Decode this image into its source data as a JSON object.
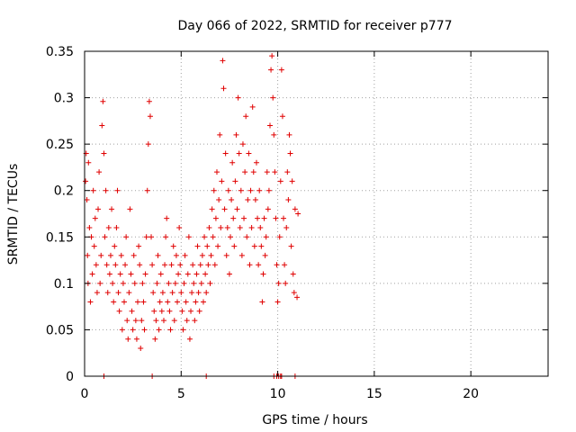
{
  "colors": {
    "series": "#e00000",
    "grid": "#a0a0a0",
    "axis": "#000000"
  },
  "chart_data": {
    "type": "scatter",
    "title": "Day 066 of 2022, SRMTID for receiver p777",
    "xlabel": "GPS time / hours",
    "ylabel": "SRMTID / TECUs",
    "xlim": [
      0,
      24
    ],
    "ylim": [
      0,
      0.35
    ],
    "grid": true,
    "marker": "plus",
    "xticks": [
      0,
      5,
      10,
      15,
      20
    ],
    "yticks": [
      0,
      0.05,
      0.1,
      0.15,
      0.2,
      0.25,
      0.3,
      0.35
    ],
    "xtick_labels": [
      "0",
      "5",
      "10",
      "15",
      "20"
    ],
    "ytick_labels": [
      "0",
      "0.05",
      "0.1",
      "0.15",
      "0.2",
      "0.25",
      "0.3",
      "0.35"
    ],
    "series": [
      {
        "name": "SRMTID",
        "points": [
          [
            0.05,
            0.21
          ],
          [
            0.08,
            0.24
          ],
          [
            0.12,
            0.19
          ],
          [
            0.15,
            0.13
          ],
          [
            0.18,
            0.1
          ],
          [
            0.2,
            0.23
          ],
          [
            0.25,
            0.16
          ],
          [
            0.3,
            0.08
          ],
          [
            0.35,
            0.15
          ],
          [
            0.4,
            0.11
          ],
          [
            0.45,
            0.2
          ],
          [
            0.5,
            0.14
          ],
          [
            0.55,
            0.17
          ],
          [
            0.6,
            0.12
          ],
          [
            0.65,
            0.09
          ],
          [
            0.7,
            0.18
          ],
          [
            0.75,
            0.22
          ],
          [
            0.8,
            0.1
          ],
          [
            0.85,
            0.13
          ],
          [
            0.9,
            0.27
          ],
          [
            0.95,
            0.296
          ],
          [
            1.0,
            0.24
          ],
          [
            1.05,
            0.15
          ],
          [
            1.1,
            0.2
          ],
          [
            1.15,
            0.12
          ],
          [
            1.2,
            0.09
          ],
          [
            1.25,
            0.16
          ],
          [
            1.3,
            0.11
          ],
          [
            1.35,
            0.13
          ],
          [
            1.4,
            0.18
          ],
          [
            1.45,
            0.1
          ],
          [
            1.5,
            0.08
          ],
          [
            1.55,
            0.14
          ],
          [
            1.6,
            0.12
          ],
          [
            1.65,
            0.16
          ],
          [
            1.7,
            0.2
          ],
          [
            1.75,
            0.09
          ],
          [
            1.8,
            0.07
          ],
          [
            1.85,
            0.11
          ],
          [
            1.9,
            0.13
          ],
          [
            1.95,
            0.05
          ],
          [
            2.0,
            0.1
          ],
          [
            2.05,
            0.08
          ],
          [
            2.1,
            0.12
          ],
          [
            2.15,
            0.15
          ],
          [
            2.2,
            0.06
          ],
          [
            2.25,
            0.04
          ],
          [
            2.3,
            0.09
          ],
          [
            2.35,
            0.18
          ],
          [
            2.4,
            0.11
          ],
          [
            2.45,
            0.07
          ],
          [
            2.5,
            0.05
          ],
          [
            2.55,
            0.13
          ],
          [
            2.6,
            0.1
          ],
          [
            2.65,
            0.06
          ],
          [
            2.7,
            0.04
          ],
          [
            2.75,
            0.08
          ],
          [
            2.8,
            0.14
          ],
          [
            2.85,
            0.12
          ],
          [
            2.9,
            0.03
          ],
          [
            2.95,
            0.06
          ],
          [
            3.0,
            0.1
          ],
          [
            3.05,
            0.08
          ],
          [
            3.1,
            0.05
          ],
          [
            3.15,
            0.11
          ],
          [
            3.2,
            0.15
          ],
          [
            3.25,
            0.2
          ],
          [
            3.3,
            0.25
          ],
          [
            3.35,
            0.296
          ],
          [
            3.4,
            0.28
          ],
          [
            3.45,
            0.15
          ],
          [
            3.5,
            0.12
          ],
          [
            3.55,
            0.09
          ],
          [
            3.6,
            0.07
          ],
          [
            3.65,
            0.04
          ],
          [
            3.7,
            0.06
          ],
          [
            3.75,
            0.1
          ],
          [
            3.8,
            0.13
          ],
          [
            3.85,
            0.05
          ],
          [
            3.9,
            0.08
          ],
          [
            3.95,
            0.11
          ],
          [
            4.0,
            0.07
          ],
          [
            4.05,
            0.09
          ],
          [
            4.1,
            0.06
          ],
          [
            4.15,
            0.12
          ],
          [
            4.2,
            0.15
          ],
          [
            4.25,
            0.17
          ],
          [
            4.3,
            0.08
          ],
          [
            4.35,
            0.1
          ],
          [
            4.4,
            0.07
          ],
          [
            4.45,
            0.05
          ],
          [
            4.5,
            0.12
          ],
          [
            4.55,
            0.09
          ],
          [
            4.6,
            0.14
          ],
          [
            4.65,
            0.06
          ],
          [
            4.7,
            0.1
          ],
          [
            4.75,
            0.13
          ],
          [
            4.8,
            0.08
          ],
          [
            4.85,
            0.11
          ],
          [
            4.9,
            0.16
          ],
          [
            4.95,
            0.12
          ],
          [
            5.0,
            0.09
          ],
          [
            5.05,
            0.07
          ],
          [
            5.1,
            0.05
          ],
          [
            5.15,
            0.1
          ],
          [
            5.2,
            0.13
          ],
          [
            5.25,
            0.08
          ],
          [
            5.3,
            0.06
          ],
          [
            5.35,
            0.11
          ],
          [
            5.4,
            0.15
          ],
          [
            5.45,
            0.04
          ],
          [
            5.5,
            0.07
          ],
          [
            5.55,
            0.09
          ],
          [
            5.6,
            0.12
          ],
          [
            5.65,
            0.1
          ],
          [
            5.7,
            0.06
          ],
          [
            5.75,
            0.08
          ],
          [
            5.8,
            0.11
          ],
          [
            5.85,
            0.14
          ],
          [
            5.9,
            0.09
          ],
          [
            5.95,
            0.07
          ],
          [
            6.0,
            0.12
          ],
          [
            6.05,
            0.1
          ],
          [
            6.1,
            0.13
          ],
          [
            6.15,
            0.08
          ],
          [
            6.2,
            0.15
          ],
          [
            6.25,
            0.11
          ],
          [
            6.3,
            0.09
          ],
          [
            6.35,
            0.14
          ],
          [
            6.4,
            0.12
          ],
          [
            6.45,
            0.16
          ],
          [
            6.5,
            0.1
          ],
          [
            6.55,
            0.13
          ],
          [
            6.6,
            0.18
          ],
          [
            6.65,
            0.15
          ],
          [
            6.7,
            0.2
          ],
          [
            6.75,
            0.12
          ],
          [
            6.8,
            0.17
          ],
          [
            6.85,
            0.22
          ],
          [
            6.9,
            0.14
          ],
          [
            6.95,
            0.19
          ],
          [
            7.0,
            0.26
          ],
          [
            7.05,
            0.16
          ],
          [
            7.1,
            0.21
          ],
          [
            7.15,
            0.34
          ],
          [
            7.2,
            0.31
          ],
          [
            7.25,
            0.18
          ],
          [
            7.3,
            0.24
          ],
          [
            7.35,
            0.13
          ],
          [
            7.4,
            0.16
          ],
          [
            7.45,
            0.2
          ],
          [
            7.5,
            0.11
          ],
          [
            7.55,
            0.15
          ],
          [
            7.6,
            0.19
          ],
          [
            7.65,
            0.23
          ],
          [
            7.7,
            0.17
          ],
          [
            7.75,
            0.14
          ],
          [
            7.8,
            0.21
          ],
          [
            7.85,
            0.26
          ],
          [
            7.9,
            0.18
          ],
          [
            7.95,
            0.3
          ],
          [
            8.0,
            0.24
          ],
          [
            8.05,
            0.16
          ],
          [
            8.1,
            0.2
          ],
          [
            8.15,
            0.13
          ],
          [
            8.2,
            0.25
          ],
          [
            8.25,
            0.17
          ],
          [
            8.3,
            0.22
          ],
          [
            8.35,
            0.28
          ],
          [
            8.4,
            0.15
          ],
          [
            8.45,
            0.19
          ],
          [
            8.5,
            0.24
          ],
          [
            8.55,
            0.12
          ],
          [
            8.6,
            0.2
          ],
          [
            8.65,
            0.16
          ],
          [
            8.7,
            0.29
          ],
          [
            8.75,
            0.22
          ],
          [
            8.8,
            0.14
          ],
          [
            8.85,
            0.19
          ],
          [
            8.9,
            0.23
          ],
          [
            8.95,
            0.17
          ],
          [
            9.0,
            0.12
          ],
          [
            9.05,
            0.2
          ],
          [
            9.1,
            0.16
          ],
          [
            9.15,
            0.14
          ],
          [
            9.2,
            0.08
          ],
          [
            9.25,
            0.11
          ],
          [
            9.3,
            0.17
          ],
          [
            9.35,
            0.13
          ],
          [
            9.4,
            0.15
          ],
          [
            9.45,
            0.22
          ],
          [
            9.5,
            0.18
          ],
          [
            9.55,
            0.2
          ],
          [
            9.6,
            0.27
          ],
          [
            9.65,
            0.33
          ],
          [
            9.7,
            0.345
          ],
          [
            9.75,
            0.3
          ],
          [
            9.8,
            0.26
          ],
          [
            9.85,
            0.22
          ],
          [
            9.9,
            0.17
          ],
          [
            9.95,
            0.12
          ],
          [
            10.0,
            0.08
          ],
          [
            10.05,
            0.1
          ],
          [
            10.1,
            0.15
          ],
          [
            10.15,
            0.21
          ],
          [
            10.2,
            0.33
          ],
          [
            10.25,
            0.28
          ],
          [
            10.3,
            0.17
          ],
          [
            10.35,
            0.12
          ],
          [
            10.4,
            0.1
          ],
          [
            10.45,
            0.16
          ],
          [
            10.5,
            0.22
          ],
          [
            10.55,
            0.19
          ],
          [
            10.6,
            0.26
          ],
          [
            10.65,
            0.24
          ],
          [
            10.7,
            0.14
          ],
          [
            10.75,
            0.21
          ],
          [
            10.8,
            0.11
          ],
          [
            10.85,
            0.09
          ],
          [
            10.9,
            0.18
          ],
          [
            11.0,
            0.085
          ],
          [
            11.05,
            0.175
          ],
          [
            1.0,
            0.0
          ],
          [
            3.5,
            0.0
          ],
          [
            6.3,
            0.0
          ],
          [
            9.8,
            0.0
          ],
          [
            9.95,
            0.0
          ],
          [
            10.05,
            0.0
          ],
          [
            10.15,
            0.0
          ],
          [
            10.2,
            0.0
          ],
          [
            10.9,
            0.0
          ]
        ]
      }
    ]
  }
}
